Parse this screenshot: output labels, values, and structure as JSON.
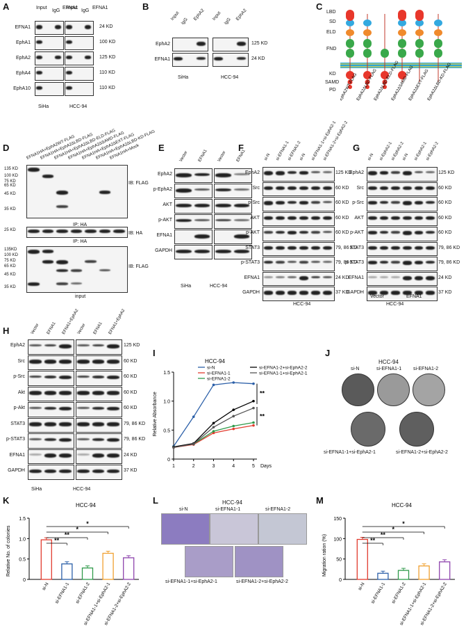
{
  "panels": {
    "A": {
      "letter": "A",
      "cols": [
        "Input",
        "IgG",
        "EFNA1"
      ],
      "rows": [
        {
          "label": "EFNA1",
          "kd": "24 KD"
        },
        {
          "label": "EphA1",
          "kd": "100 KD"
        },
        {
          "label": "EphA2",
          "kd": "125 KD"
        },
        {
          "label": "EphA4",
          "kd": "110 KD"
        },
        {
          "label": "EphA10",
          "kd": "110 KD"
        }
      ],
      "cells": [
        "SiHa",
        "HCC-94"
      ]
    },
    "B": {
      "letter": "B",
      "cols": [
        "Input",
        "IgG",
        "EphA2"
      ],
      "rows": [
        {
          "label": "EphA2",
          "kd": "125 KD"
        },
        {
          "label": "EFNA1",
          "kd": "24 KD"
        }
      ],
      "cells": [
        "SiHa",
        "HCC-94"
      ]
    },
    "C": {
      "letter": "C",
      "domains": [
        "LBD",
        "SD",
        "ELD",
        "FND",
        "KD",
        "SAMD",
        "PD"
      ],
      "constructs": [
        "EphA2WT-FLAG",
        "EphA2ΔLBD-FLAG",
        "EphA2ΔLBD-ELD-FLAG",
        "EphA2ΔSAMD-FLAG",
        "EphA2ΔEXT-FLAG",
        "EphA2ΔLBD-KD-FLAG"
      ],
      "colors": {
        "lbd": "#e8372b",
        "sd": "#33a9e0",
        "eld": "#f08a2c",
        "fnd": "#3aa84a",
        "membrane": "#2aa6d8",
        "intra": "#e8372b"
      }
    },
    "D": {
      "letter": "D",
      "lanes": [
        "EFNA1HA+EphA2WT-FLAG",
        "EFNA1HA+EphA2ΔLBD-FLAG",
        "EFNA1HA+EphA2ΔLBD-ELD-FLAG",
        "EFNA1HA+EphA2ΔSAMD-FLAG",
        "EFNA1HA+EphA2ΔEXT-FLAG",
        "EFNA1HA+EphA2ΔLBD-KD-FLAG",
        "EFNA1HA+Mock"
      ],
      "markers_top": [
        "135 KD",
        "100 KD",
        "75 KD",
        "65 KD",
        "45 KD",
        "35 KD"
      ],
      "markers_mid": [
        "25 KD"
      ],
      "markers_bot": [
        "135KD",
        "100 KD",
        "75 KD",
        "65 KD",
        "45 KD",
        "35 KD"
      ],
      "ib1": "IB: FLAG",
      "ip1": "IP: HA",
      "ib2": "IB: HA",
      "ip2": "IP: HA",
      "ib3": "IB: FLAG",
      "input": "input"
    },
    "E": {
      "letter": "E",
      "cols": [
        "Vector",
        "EFNA1",
        "Vector",
        "EFNA1"
      ],
      "rows": [
        "EphA2",
        "p-EphA2",
        "AKT",
        "p-AKT",
        "EFNA1",
        "GAPDH"
      ],
      "cells": [
        "SiHa",
        "HCC-94"
      ]
    },
    "F": {
      "letter": "F",
      "cols": [
        "si-N",
        "si-EFNA1-1",
        "si-EFNA1-2",
        "si-N",
        "si-EFNA1-1+si-EphA2-1",
        "si-EFNA1-2+si-EphA2-2"
      ],
      "rows": [
        {
          "label": "EphA2",
          "kd": "125 KD"
        },
        {
          "label": "Src",
          "kd": "60 KD"
        },
        {
          "label": "p-Src",
          "kd": "60 KD"
        },
        {
          "label": "AKT",
          "kd": "60 KD"
        },
        {
          "label": "p-AKT",
          "kd": "60 KD"
        },
        {
          "label": "STAT3",
          "kd": "79, 86 KD"
        },
        {
          "label": "p-STAT3",
          "kd": "79, 86 KD"
        },
        {
          "label": "EFNA1",
          "kd": "24 KD"
        },
        {
          "label": "GAPDH",
          "kd": "37 KD"
        }
      ],
      "cell": "HCC-94"
    },
    "G": {
      "letter": "G",
      "cols": [
        "si-N",
        "si-EphA2-1",
        "si-EphA2-2",
        "si-N",
        "si-EphA2-1",
        "si-EphA2-2"
      ],
      "rows": [
        {
          "label": "EphA2",
          "kd": "125 KD"
        },
        {
          "label": "Src",
          "kd": "60 KD"
        },
        {
          "label": "p-Src",
          "kd": "60 KD"
        },
        {
          "label": "AKT",
          "kd": "60 KD"
        },
        {
          "label": "p-AKT",
          "kd": "60 KD"
        },
        {
          "label": "STAT3",
          "kd": "79, 86 KD"
        },
        {
          "label": "p-STAT3",
          "kd": "79, 86 KD"
        },
        {
          "label": "EFNA1",
          "kd": "24 KD"
        },
        {
          "label": "GAPDH",
          "kd": "37 KD"
        }
      ],
      "groups": [
        "Vector",
        "EFNA1"
      ],
      "cell": "HCC-94"
    },
    "H": {
      "letter": "H",
      "cols": [
        "Vector",
        "EFNA1",
        "EFNA1+EphA2",
        "Vector",
        "EFNA1",
        "EFNA1+EphA2"
      ],
      "rows": [
        {
          "label": "EphA2",
          "kd": "125 KD"
        },
        {
          "label": "Src",
          "kd": "60 KD"
        },
        {
          "label": "p-Src",
          "kd": "60 KD"
        },
        {
          "label": "Akt",
          "kd": "60 KD"
        },
        {
          "label": "p-Akt",
          "kd": "60 KD"
        },
        {
          "label": "STAT3",
          "kd": "79, 86 KD"
        },
        {
          "label": "p-STAT3",
          "kd": "79, 86 KD"
        },
        {
          "label": "EFNA1",
          "kd": "24 KD"
        },
        {
          "label": "GAPDH",
          "kd": "37 KD"
        }
      ],
      "cells": [
        "SiHa",
        "HCC-94"
      ]
    },
    "J": {
      "letter": "J",
      "title": "HCC-94",
      "labels": [
        "si-N",
        "si-EFNA1-1",
        "si-EFNA1-2",
        "si-EFNA1-1+si-EphA2-1",
        "si-EFNA1-2+si-EphA2-2"
      ]
    },
    "L": {
      "letter": "L",
      "title": "HCC-94",
      "labels": [
        "si-N",
        "si-EFNA1-1",
        "si-EFNA1-2",
        "si-EFNA1-1+si-EphA2-1",
        "si-EFNA1-2+si-EphA2-2"
      ]
    }
  },
  "chart_data": [
    {
      "id": "I",
      "type": "line",
      "letter": "I",
      "title": "HCC-94",
      "xlabel": "Days",
      "ylabel": "Relative Absorbance",
      "x": [
        1,
        2,
        3,
        4,
        5
      ],
      "xticks": [
        "1",
        "2",
        "3",
        "4",
        "5"
      ],
      "ylim": [
        0,
        1.5
      ],
      "yticks": [
        "0",
        "0.5",
        "1.0",
        "1.5"
      ],
      "series": [
        {
          "name": "si-N",
          "color": "#2b5fa8",
          "values": [
            0.22,
            0.73,
            1.28,
            1.32,
            1.3
          ]
        },
        {
          "name": "si-EFNA1-1",
          "color": "#e23b2e",
          "values": [
            0.2,
            0.25,
            0.45,
            0.52,
            0.58
          ]
        },
        {
          "name": "si-EFNA1-2",
          "color": "#2f9a4a",
          "values": [
            0.21,
            0.26,
            0.48,
            0.57,
            0.63
          ]
        },
        {
          "name": "si-EFNA1-2+si-EphA2-2",
          "color": "#000000",
          "values": [
            0.21,
            0.27,
            0.62,
            0.85,
            1.0
          ]
        },
        {
          "name": "si-EFNA1-1+si-EphA2-1",
          "color": "#555555",
          "values": [
            0.2,
            0.26,
            0.55,
            0.74,
            0.88
          ]
        }
      ],
      "annotations": [
        "**",
        "**"
      ]
    },
    {
      "id": "K",
      "type": "bar",
      "letter": "K",
      "title": "HCC-94",
      "ylabel": "Relative No. of colonies",
      "categories": [
        "si-N",
        "si-EFNA1-1",
        "si-EFNA1-2",
        "si-EFNA1-1+si-EphA2-1",
        "si-EFNA1-2+si-EphA2-2"
      ],
      "values": [
        0.97,
        0.38,
        0.28,
        0.64,
        0.53
      ],
      "colors": [
        "#e23b2e",
        "#2b5fa8",
        "#2f9a4a",
        "#f0a030",
        "#8e44ad"
      ],
      "ylim": [
        0,
        1.5
      ],
      "yticks": [
        "0",
        "0.5",
        "1.0",
        "1.5"
      ],
      "annotations": [
        "**",
        "**",
        "*",
        "*"
      ]
    },
    {
      "id": "M",
      "type": "bar",
      "letter": "M",
      "title": "HCC-94",
      "ylabel": "Migration ration (%)",
      "categories": [
        "si-N",
        "si-EFNA1-1",
        "si-EFNA1-2",
        "si-EFNA1-1+si-EphA2-1",
        "si-EFNA1-2+si-EphA2-2"
      ],
      "values": [
        98,
        15,
        22,
        33,
        43
      ],
      "colors": [
        "#e23b2e",
        "#2b5fa8",
        "#2f9a4a",
        "#f0a030",
        "#8e44ad"
      ],
      "ylim": [
        0,
        150
      ],
      "yticks": [
        "0",
        "50",
        "100",
        "150"
      ],
      "annotations": [
        "**",
        "**",
        "*",
        "*"
      ]
    }
  ]
}
